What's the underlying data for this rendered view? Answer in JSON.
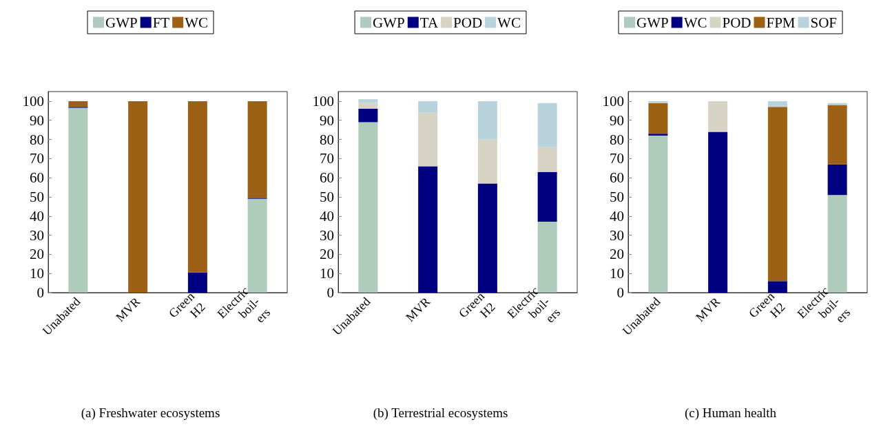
{
  "chart_data": [
    {
      "type": "bar",
      "title": "(a) Freshwater ecosystems",
      "categories": [
        "Unabated",
        "MVR",
        "Green\nH2",
        "Electric\nboil-\ners"
      ],
      "stacked": true,
      "ylim": [
        0,
        105
      ],
      "yticks": [
        0,
        10,
        20,
        30,
        40,
        50,
        60,
        70,
        80,
        90,
        100
      ],
      "grid": false,
      "legend": "top",
      "series": [
        {
          "name": "GWP",
          "color": "#aecbbb",
          "values": [
            96.5,
            0,
            0,
            49
          ]
        },
        {
          "name": "FT",
          "color": "#000080",
          "values": [
            0.5,
            0,
            10.5,
            0.5
          ]
        },
        {
          "name": "WC",
          "color": "#9c6115",
          "values": [
            3,
            100,
            89.5,
            50.5
          ]
        }
      ]
    },
    {
      "type": "bar",
      "title": "(b) Terrestrial ecosystems",
      "categories": [
        "Unabated",
        "MVR",
        "Green\nH2",
        "Electric\nboil-\ners"
      ],
      "stacked": true,
      "ylim": [
        0,
        105
      ],
      "yticks": [
        0,
        10,
        20,
        30,
        40,
        50,
        60,
        70,
        80,
        90,
        100
      ],
      "grid": false,
      "legend": "top",
      "series": [
        {
          "name": "GWP",
          "color": "#aecbbb",
          "values": [
            89,
            0,
            0,
            37
          ]
        },
        {
          "name": "TA",
          "color": "#000080",
          "values": [
            7,
            66,
            57,
            26
          ]
        },
        {
          "name": "POD",
          "color": "#d7d3c5",
          "values": [
            3,
            28,
            23,
            13
          ]
        },
        {
          "name": "WC",
          "color": "#b9d3dc",
          "values": [
            2,
            6,
            20,
            23
          ]
        }
      ]
    },
    {
      "type": "bar",
      "title": "(c) Human health",
      "categories": [
        "Unabated",
        "MVR",
        "Green\nH2",
        "Electric\nboil-\ners"
      ],
      "stacked": true,
      "ylim": [
        0,
        105
      ],
      "yticks": [
        0,
        10,
        20,
        30,
        40,
        50,
        60,
        70,
        80,
        90,
        100
      ],
      "grid": false,
      "legend": "top",
      "series": [
        {
          "name": "GWP",
          "color": "#aecbbb",
          "values": [
            82,
            0,
            0,
            51
          ]
        },
        {
          "name": "WC",
          "color": "#000080",
          "values": [
            1,
            84,
            6,
            16
          ]
        },
        {
          "name": "POD",
          "color": "#d7d3c5",
          "values": [
            0,
            16,
            0,
            0
          ]
        },
        {
          "name": "FPM",
          "color": "#9c6115",
          "values": [
            16,
            0,
            91,
            31
          ]
        },
        {
          "name": "SOF",
          "color": "#b9d3dc",
          "values": [
            1,
            0,
            3,
            1
          ]
        }
      ]
    }
  ]
}
